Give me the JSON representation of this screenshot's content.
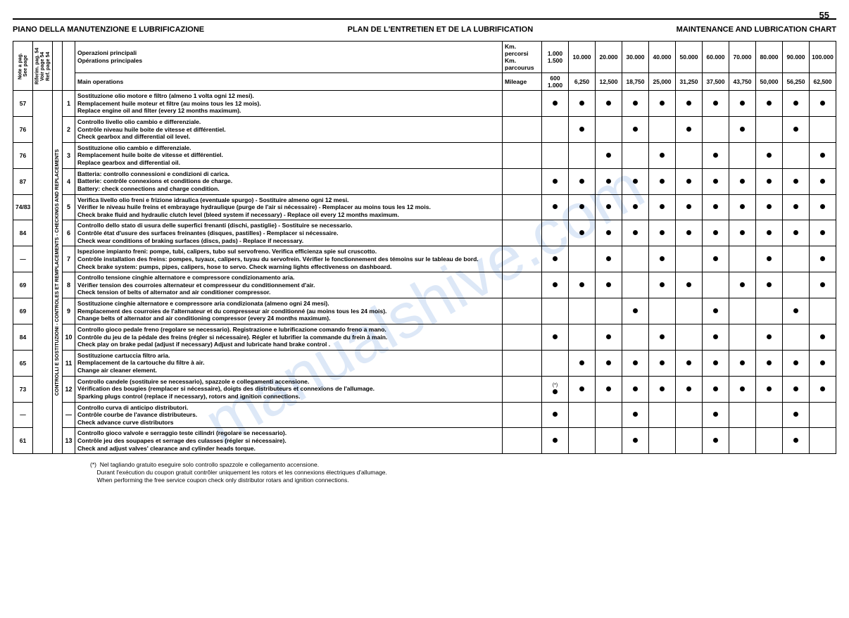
{
  "page_number": "55",
  "watermark": "manualshive.com",
  "titles": {
    "it": "PIANO DELLA MANUTENZIONE E LUBRIFICAZIONE",
    "fr": "PLAN DE L'ENTRETIEN ET DE LA LUBRIFICATION",
    "en": "MAINTENANCE AND LUBRICATION CHART"
  },
  "headers": {
    "note": "Note a pag.\nSee page",
    "ref": "Riferim. pag. 54\nVoir page 54\nRef. page 54",
    "ops_it": "Operazioni principali",
    "ops_fr": "Opérations principales",
    "ops_en": "Main operations",
    "km_it": "Km. percorsi",
    "km_fr": "Km. parcourus",
    "mileage": "Mileage",
    "km_cols": [
      "1.000\n1.500",
      "10.000",
      "20.000",
      "30.000",
      "40.000",
      "50.000",
      "60.000",
      "70.000",
      "80.000",
      "90.000",
      "100.000"
    ],
    "mi_cols": [
      "600\n1.000",
      "6,250",
      "12,500",
      "18,750",
      "25,000",
      "31,250",
      "37,500",
      "43,750",
      "50,000",
      "56,250",
      "62,500"
    ]
  },
  "group_label": "CONTROLLI E SOSTITUZIONI - CONTROLES ET REMPLACEMENTS - CHECKINGS AND REPLACEMENTS",
  "rows": [
    {
      "note": "57",
      "ref": "",
      "num": "1",
      "it": "Sostituzione olio motore e filtro (almeno 1 volta ogni 12 mesi).",
      "fr": "Remplacement huile moteur et filtre (au moins tous les 12 mois).",
      "en": "Replace engine oil and filter (every 12 months maximum).",
      "dots": [
        1,
        1,
        1,
        1,
        1,
        1,
        1,
        1,
        1,
        1,
        1
      ]
    },
    {
      "note": "76",
      "ref": "",
      "num": "2",
      "it": "Controllo livello olio cambio e differenziale.",
      "fr": "Contrôle niveau huile boite de vitesse et différentiel.",
      "en": "Check gearbox and differential oil level.",
      "dots": [
        0,
        1,
        0,
        1,
        0,
        1,
        0,
        1,
        0,
        1,
        0
      ]
    },
    {
      "note": "76",
      "ref": "",
      "num": "3",
      "it": "Sostituzione olio cambio e differenziale.",
      "fr": "Remplacement huile boite de vitesse et différentiel.",
      "en": "Replace gearbox and differential oil.",
      "dots": [
        0,
        0,
        1,
        0,
        1,
        0,
        1,
        0,
        1,
        0,
        1
      ]
    },
    {
      "note": "87",
      "ref": "",
      "num": "4",
      "it": "Batteria: controllo connessioni e condizioni di carica.",
      "fr": "Batterie: contrôle connexions et conditions de charge.",
      "en": "Battery: check connections and charge condition.",
      "dots": [
        1,
        1,
        1,
        1,
        1,
        1,
        1,
        1,
        1,
        1,
        1
      ]
    },
    {
      "note": "74/83",
      "ref": "",
      "num": "5",
      "it": "Verifica livello olio freni e frizione idraulica (eventuale spurgo) - Sostituire almeno ogni 12 mesi.",
      "fr": "Vérifier le niveau huile freins et embrayage hydraulique (purge de l'air si nécessaire) - Remplacer au moins tous les 12 mois.",
      "en": "Check brake fluid and hydraulic clutch level (bleed system if necessary) - Replace oil every 12 months maximum.",
      "dots": [
        1,
        1,
        1,
        1,
        1,
        1,
        1,
        1,
        1,
        1,
        1
      ]
    },
    {
      "note": "84",
      "ref": "",
      "num": "6",
      "it": "Controllo dello stato di usura delle superfici frenanti (dischi, pastiglie) - Sostituire se necessario.",
      "fr": "Contrôle état d'usure des surfaces freinantes (disques, pastilles) - Remplacer si nécessaire.",
      "en": "Check wear conditions of braking surfaces (discs, pads) - Replace if necessary.",
      "dots": [
        0,
        1,
        1,
        1,
        1,
        1,
        1,
        1,
        1,
        1,
        1
      ]
    },
    {
      "note": "—",
      "ref": "",
      "num": "7",
      "it": "Ispezione impianto freni: pompe, tubi, calipers, tubo sul servofreno. Verifica efficienza spie sul cruscotto.",
      "fr": "Contrôle installation des freins: pompes, tuyaux, calipers, tuyau du servofrein. Vérifier le fonctionnement des témoins sur le tableau de bord.",
      "en": "Check brake system: pumps, pipes, calipers, hose to servo. Check warning lights effectiveness on dashboard.",
      "dots": [
        1,
        0,
        1,
        0,
        1,
        0,
        1,
        0,
        1,
        0,
        1
      ]
    },
    {
      "note": "69",
      "ref": "",
      "num": "8",
      "it": "Controllo tensione cinghie alternatore e compressore condizionamento aria.",
      "fr": "Vérifier tension des courroies alternateur et compresseur du conditionnement d'air.",
      "en": "Check tension of belts of alternator and air conditioner compressor.",
      "dots": [
        1,
        1,
        1,
        0,
        1,
        1,
        0,
        1,
        1,
        0,
        1
      ]
    },
    {
      "note": "69",
      "ref": "",
      "num": "9",
      "it": "Sostituzione cinghie alternatore e compressore aria condizionata (almeno ogni 24 mesi).",
      "fr": "Remplacement des courroies de l'alternateur et du compresseur air conditionné (au moins tous les 24 mois).",
      "en": "Change belts of alternator and air conditioning compressor (every 24 months maximum).",
      "dots": [
        0,
        0,
        0,
        1,
        0,
        0,
        1,
        0,
        0,
        1,
        0
      ]
    },
    {
      "note": "84",
      "ref": "",
      "num": "10",
      "it": "Controllo gioco pedale freno (regolare se necessario). Registrazione e lubrificazione comando freno a mano.",
      "fr": "Contrôle du jeu de la pédale des freins (régler si nécessaire). Régler et lubrifier la commande du frein à main.",
      "en": "Check play on brake pedal (adjust if necessary) Adjust and lubricate hand brake control .",
      "dots": [
        1,
        0,
        1,
        0,
        1,
        0,
        1,
        0,
        1,
        0,
        1
      ]
    },
    {
      "note": "65",
      "ref": "",
      "num": "11",
      "it": "Sostituzione cartuccia filtro aria.",
      "fr": "Remplacement de la cartouche du filtre à air.",
      "en": "Change air cleaner element.",
      "dots": [
        0,
        1,
        1,
        1,
        1,
        1,
        1,
        1,
        1,
        1,
        1
      ]
    },
    {
      "note": "73",
      "ref": "",
      "num": "12",
      "star": true,
      "it": "Controllo candele (sostituire se necessario), spazzole e collegamenti accensione.",
      "fr": "Vérification des bougies (remplacer si nécessaire), doigts des distributeurs et connexions de l'allumage.",
      "en": "Sparking plugs control (replace if necessary), rotors and ignition connections.",
      "dots": [
        1,
        1,
        1,
        1,
        1,
        1,
        1,
        1,
        1,
        1,
        1
      ]
    },
    {
      "note": "—",
      "ref": "",
      "num": "—",
      "it": "Controllo curva di anticipo distributori.",
      "fr": "Contrôle courbe de l'avance distributeurs.",
      "en": "Check advance curve distributors",
      "dots": [
        1,
        0,
        0,
        1,
        0,
        0,
        1,
        0,
        0,
        1,
        0
      ]
    },
    {
      "note": "61",
      "ref": "",
      "num": "13",
      "it": "Controllo gioco valvole e serraggio teste cilindri (regolare se necessario).",
      "fr": "Contrôle jeu des soupapes et serrage des culasses (régler si nécessaire).",
      "en": "Check and adjust valves' clearance and cylinder heads torque.",
      "dots": [
        1,
        0,
        0,
        1,
        0,
        0,
        1,
        0,
        0,
        1,
        0
      ]
    }
  ],
  "footnote": {
    "mark": "(*)",
    "it": "Nel tagliando gratuito eseguire solo controllo spazzole e collegamento accensione.",
    "fr": "Durant l'exécution du coupon gratuit contrôler uniquement les rotors et les connexions électriques d'allumage.",
    "en": "When performing the free service coupon check only distributor rotars and ignition connections."
  },
  "colors": {
    "text": "#000000",
    "bg": "#ffffff",
    "watermark": "rgba(100,150,220,0.22)"
  }
}
